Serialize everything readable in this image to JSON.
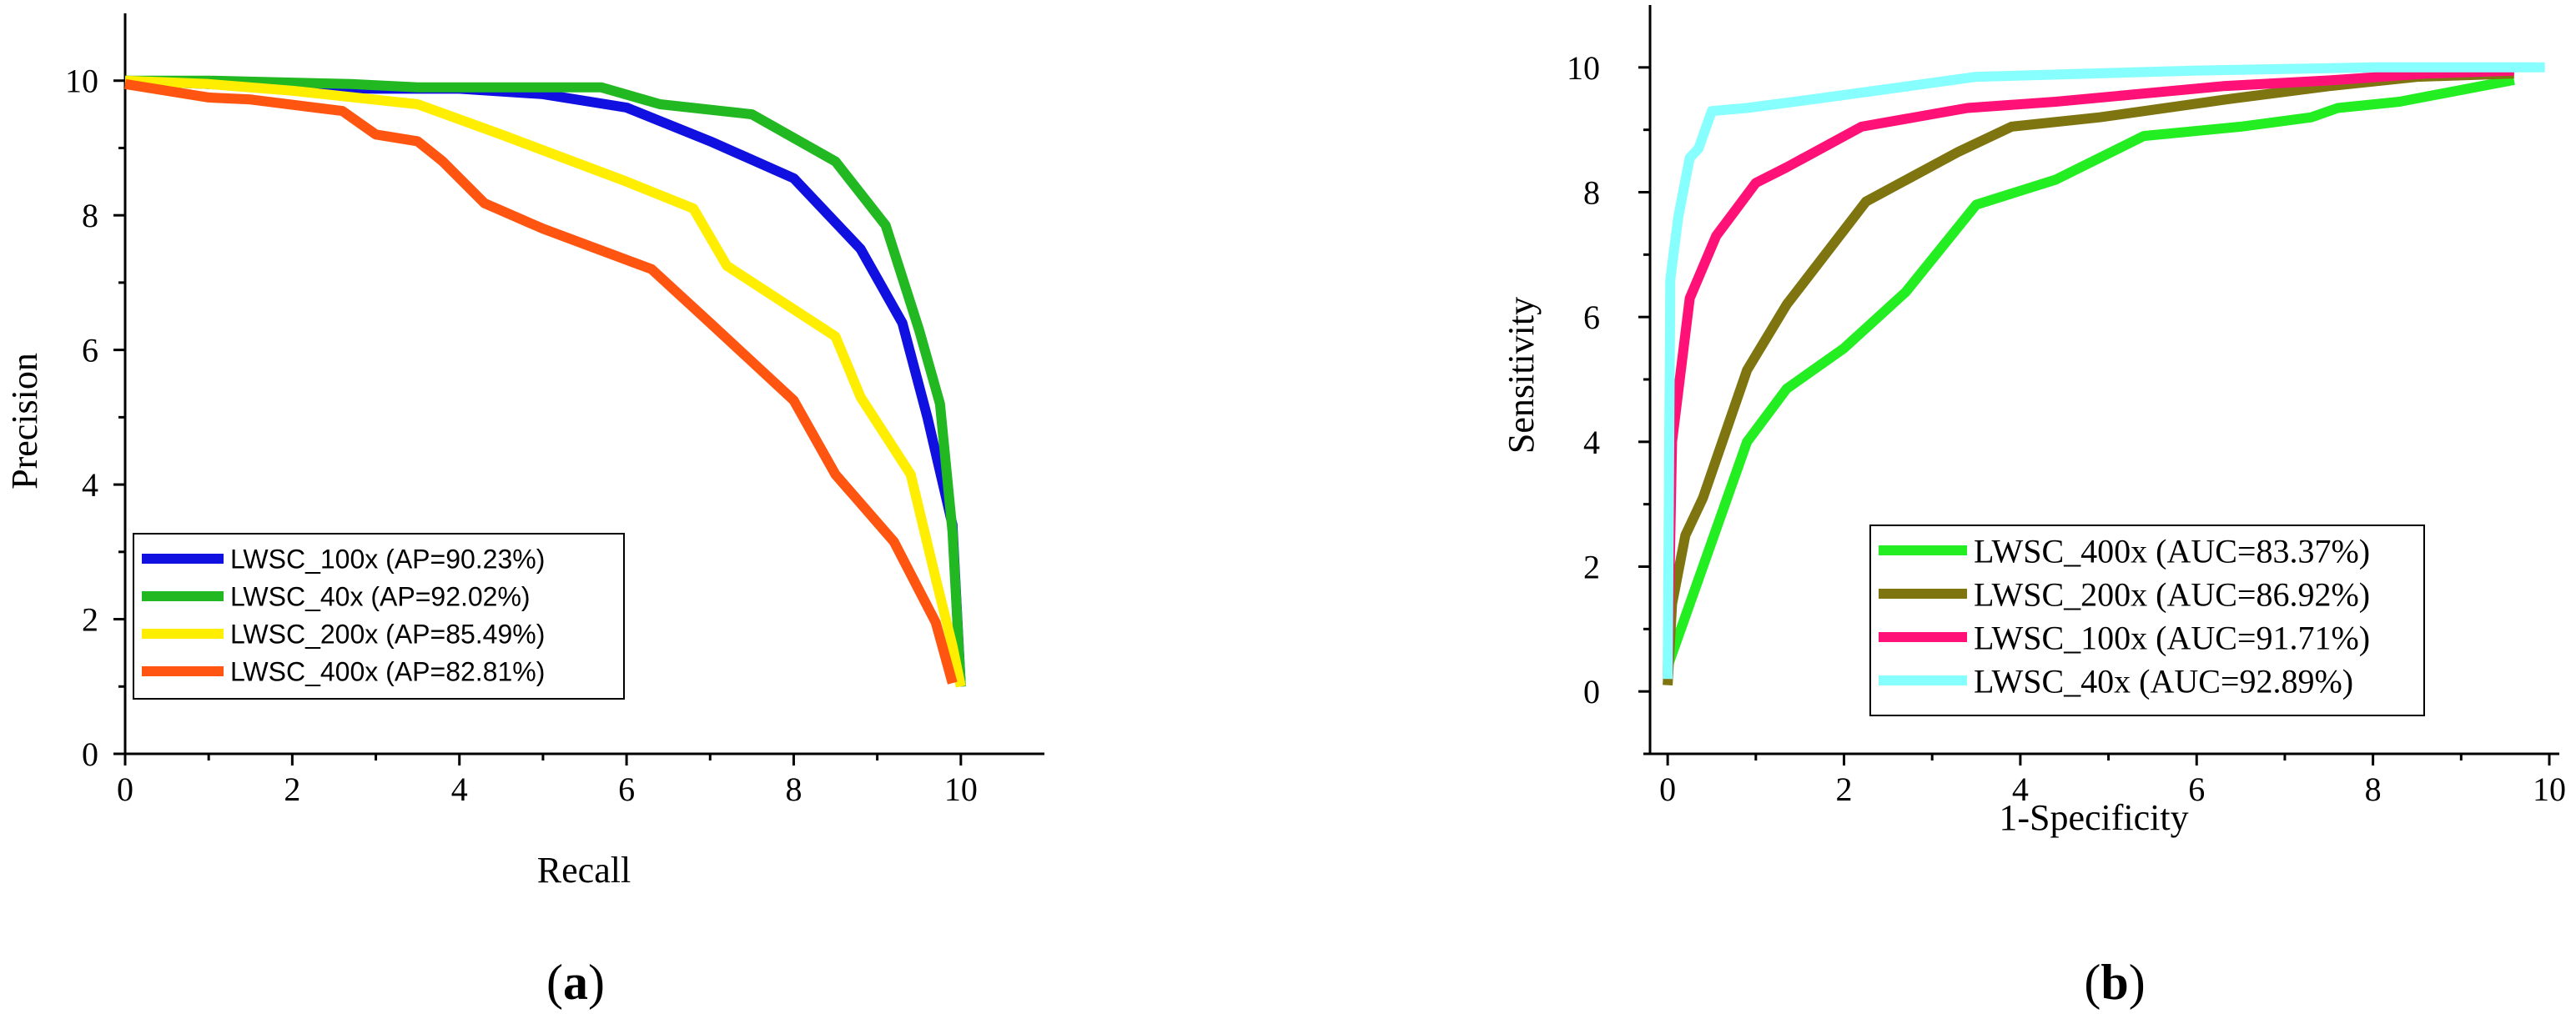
{
  "panels": [
    {
      "id": "a",
      "caption": "a",
      "colors": {
        "LWSC_100x": "#1010e0",
        "LWSC_40x": "#22b822",
        "LWSC_200x": "#ffee00",
        "LWSC_400x": "#ff5511"
      }
    },
    {
      "id": "b",
      "caption": "b",
      "colors": {
        "LWSC_400x": "#22ee22",
        "LWSC_200x": "#7f7510",
        "LWSC_100x": "#ff1177",
        "LWSC_40x": "#88ffff"
      }
    }
  ],
  "chart_data": [
    {
      "type": "line",
      "title": "",
      "xlabel": "Recall",
      "ylabel": "Precision",
      "xlim": [
        0,
        11
      ],
      "ylim": [
        0,
        11
      ],
      "xticks": [
        "0",
        "2",
        "4",
        "6",
        "8",
        "10"
      ],
      "yticks": [
        "0",
        "2",
        "4",
        "6",
        "8",
        "10"
      ],
      "legend_position": "lower-left",
      "series": [
        {
          "name": "LWSC_100x (AP=90.23%)",
          "key": "LWSC_100x",
          "x": [
            0,
            1,
            2,
            3,
            4,
            5,
            6,
            7,
            8,
            8.8,
            9.3,
            9.6,
            9.9,
            10
          ],
          "y": [
            10,
            9.95,
            9.9,
            9.88,
            9.88,
            9.8,
            9.6,
            9.1,
            8.55,
            7.5,
            6.4,
            5.0,
            3.4,
            1.0
          ]
        },
        {
          "name": "LWSC_40x (AP=92.02%)",
          "key": "LWSC_40x",
          "x": [
            0,
            1,
            2.7,
            3.5,
            4.5,
            5.7,
            6.4,
            7.5,
            8.5,
            9.1,
            9.5,
            9.75,
            9.9,
            10
          ],
          "y": [
            10,
            10,
            9.95,
            9.9,
            9.9,
            9.9,
            9.65,
            9.5,
            8.8,
            7.85,
            6.3,
            5.2,
            3.3,
            1.0
          ]
        },
        {
          "name": "LWSC_200x (AP=85.49%)",
          "key": "LWSC_200x",
          "x": [
            0,
            1,
            2,
            3.5,
            4.5,
            6,
            6.8,
            7.2,
            8.5,
            8.8,
            9.4,
            9.7,
            9.9,
            10
          ],
          "y": [
            10,
            9.95,
            9.85,
            9.65,
            9.2,
            8.5,
            8.1,
            7.25,
            6.2,
            5.3,
            4.15,
            2.6,
            1.6,
            1.0
          ]
        },
        {
          "name": "LWSC_400x (AP=82.81%)",
          "key": "LWSC_400x",
          "x": [
            0,
            1,
            1.5,
            2.6,
            3,
            3.5,
            3.8,
            4.3,
            5,
            6.3,
            7,
            8,
            8.5,
            9.2,
            9.7,
            9.9
          ],
          "y": [
            9.95,
            9.75,
            9.72,
            9.55,
            9.2,
            9.1,
            8.8,
            8.18,
            7.8,
            7.2,
            6.4,
            5.25,
            4.15,
            3.15,
            1.95,
            1.05
          ]
        }
      ]
    },
    {
      "type": "line",
      "title": "",
      "xlabel": "1-Specificity",
      "ylabel": "Sensitivity",
      "xlim": [
        -0.2,
        10
      ],
      "ylim": [
        -1,
        11
      ],
      "xticks": [
        "0",
        "2",
        "4",
        "6",
        "8",
        "10"
      ],
      "yticks": [
        "0",
        "2",
        "4",
        "6",
        "8",
        "10"
      ],
      "legend_position": "lower-right",
      "series": [
        {
          "name": "LWSC_400x (AUC=83.37%)",
          "key": "LWSC_400x",
          "x": [
            0,
            0.1,
            0.5,
            0.9,
            1.35,
            2,
            2.7,
            3.5,
            4.4,
            5.4,
            6.5,
            7.3,
            7.6,
            8.3,
            9.6
          ],
          "y": [
            0.4,
            0.8,
            2.4,
            4.0,
            4.85,
            5.5,
            6.4,
            7.8,
            8.2,
            8.9,
            9.05,
            9.2,
            9.35,
            9.45,
            9.8
          ]
        },
        {
          "name": "LWSC_200x (AUC=86.92%)",
          "key": "LWSC_200x",
          "x": [
            0,
            0.05,
            0.2,
            0.4,
            0.9,
            1.35,
            2.25,
            3.3,
            3.9,
            4.9,
            6.4,
            7.5,
            8.5,
            9.6
          ],
          "y": [
            0.1,
            1.4,
            2.5,
            3.1,
            5.15,
            6.2,
            7.85,
            8.65,
            9.05,
            9.2,
            9.5,
            9.7,
            9.85,
            9.9
          ]
        },
        {
          "name": "LWSC_100x (AUC=91.71%)",
          "key": "LWSC_100x",
          "x": [
            0,
            0.05,
            0.25,
            0.55,
            1.0,
            1.35,
            2.2,
            3.4,
            4.4,
            6.3,
            7.6,
            8.6,
            9.6
          ],
          "y": [
            0.2,
            4.0,
            6.3,
            7.3,
            8.15,
            8.4,
            9.05,
            9.35,
            9.45,
            9.7,
            9.8,
            9.9,
            9.95
          ]
        },
        {
          "name": "LWSC_40x (AUC=92.89%)",
          "key": "LWSC_40x",
          "x": [
            0,
            0.03,
            0.12,
            0.25,
            0.35,
            0.5,
            0.9,
            1.7,
            3.5,
            6,
            8,
            9.95
          ],
          "y": [
            0.2,
            6.6,
            7.6,
            8.55,
            8.7,
            9.3,
            9.35,
            9.5,
            9.85,
            9.95,
            10,
            10
          ]
        }
      ]
    }
  ]
}
